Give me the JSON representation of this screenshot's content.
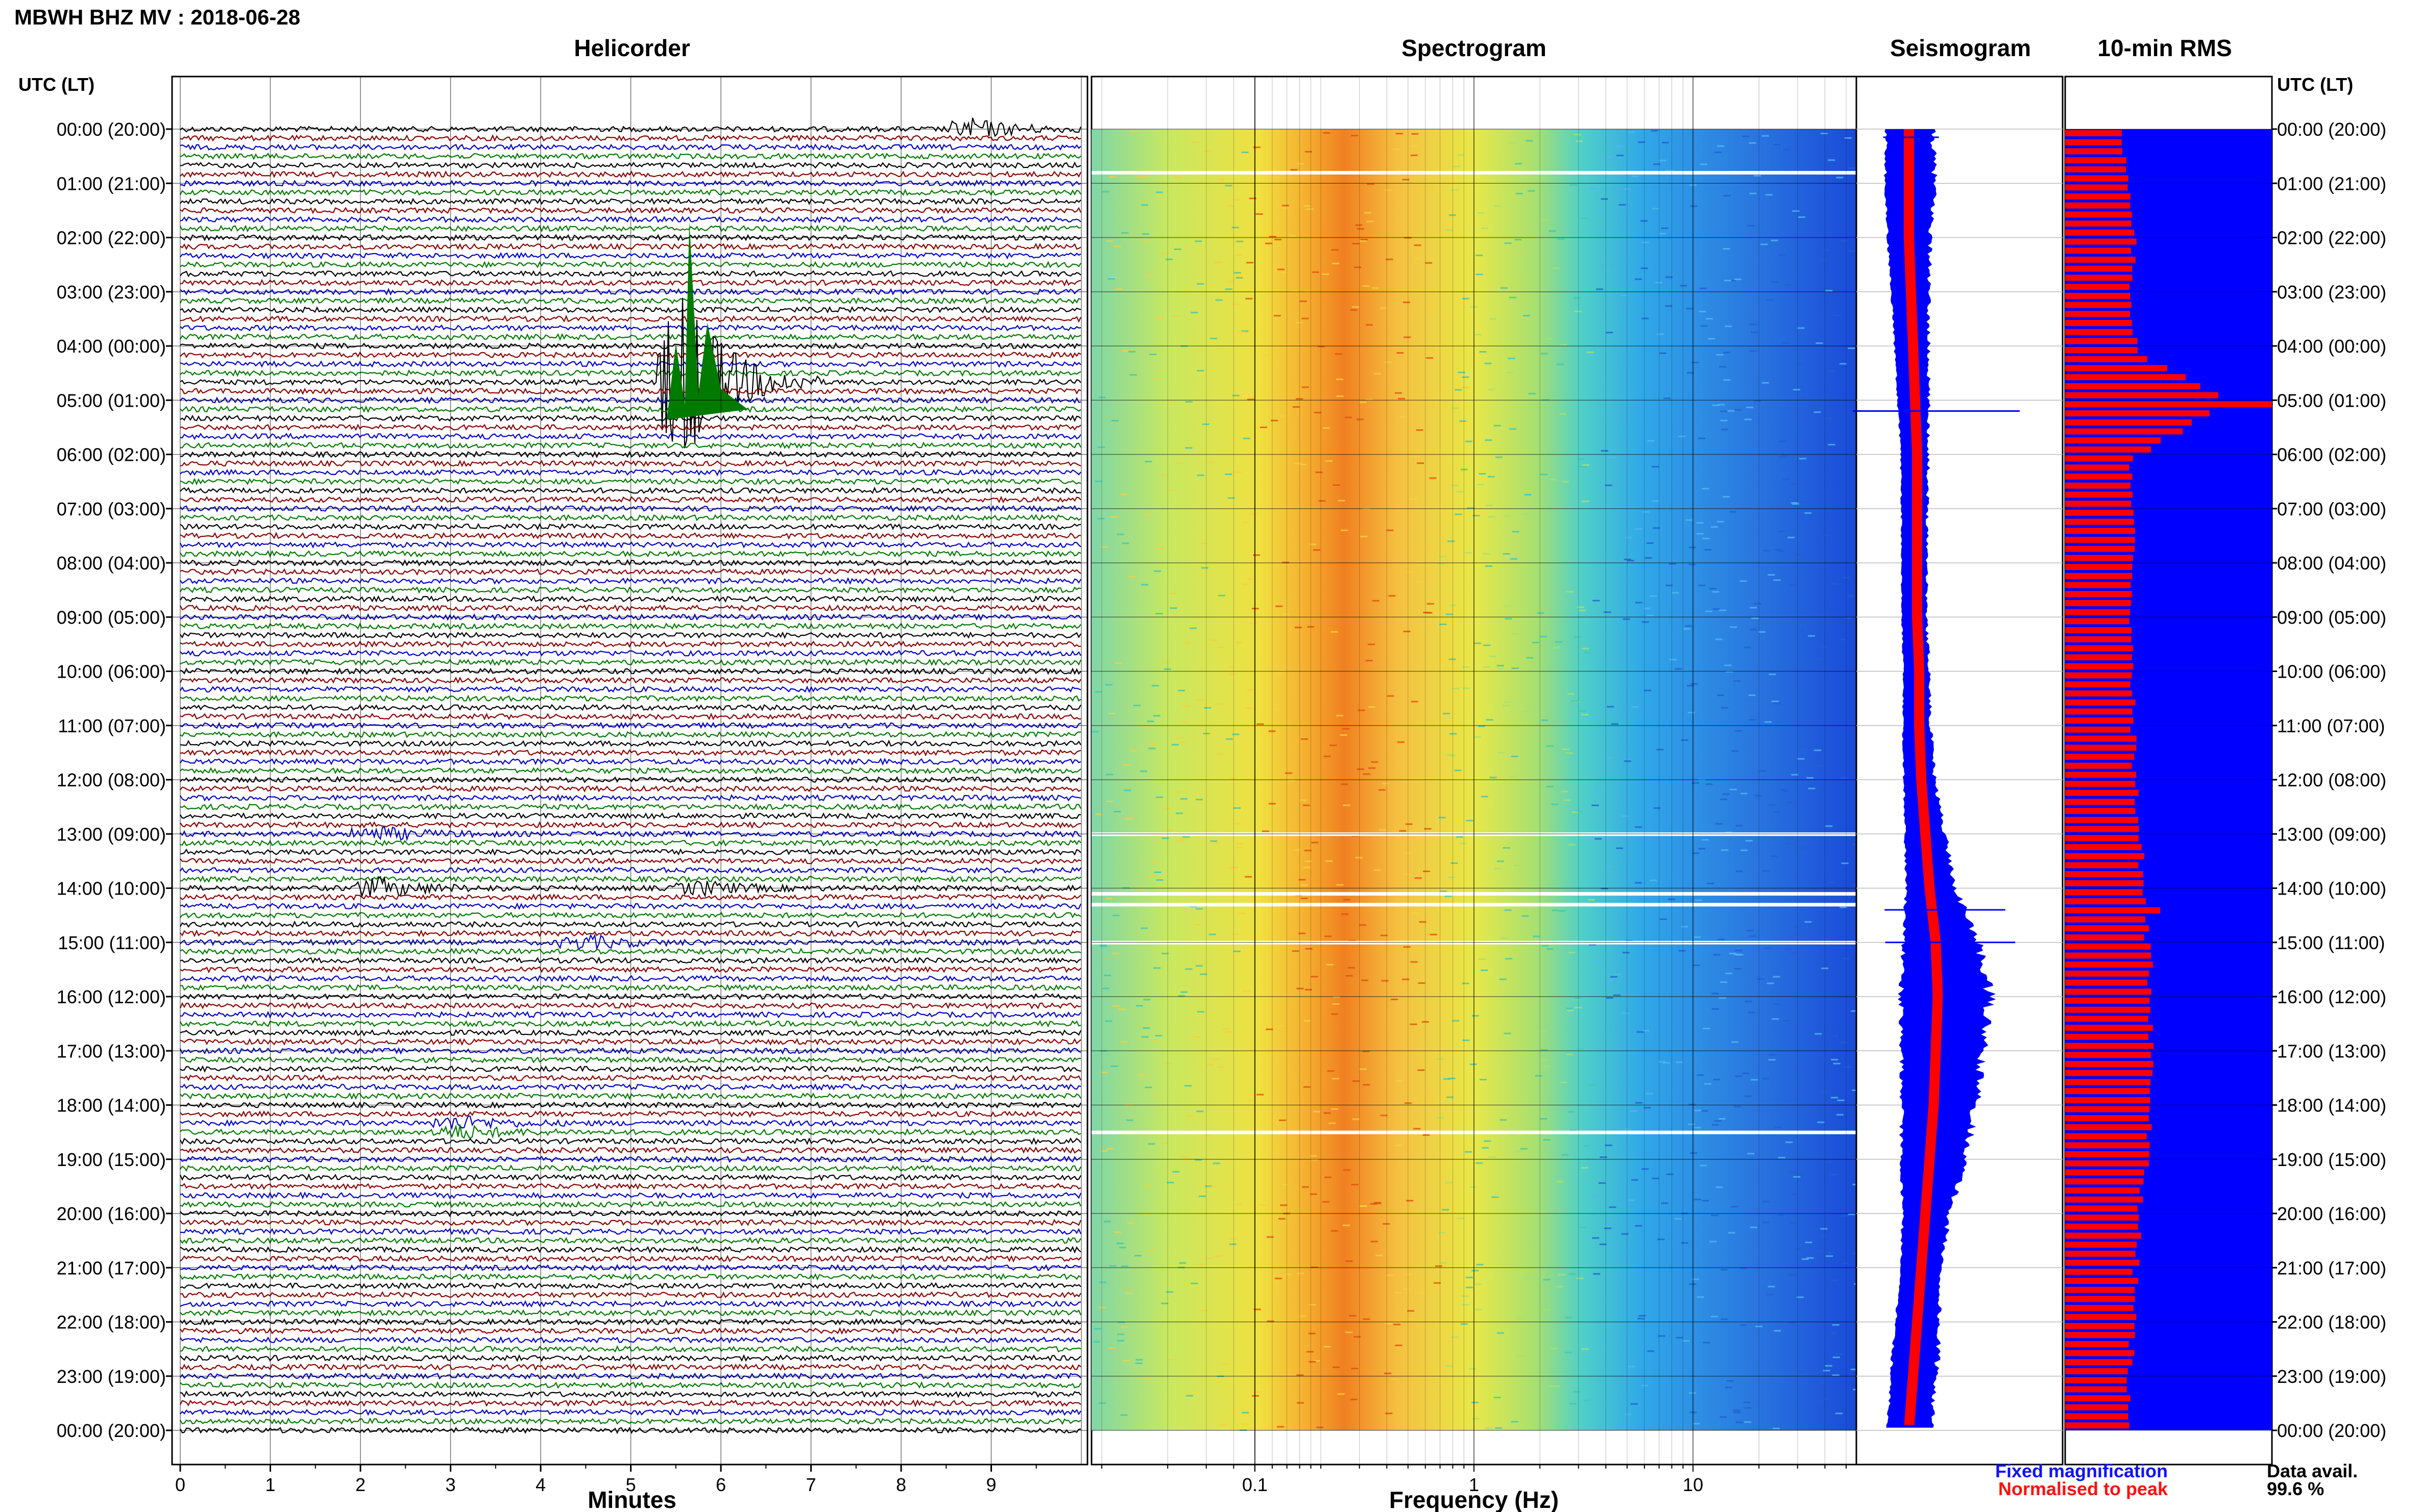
{
  "header": {
    "title": "MBWH BHZ MV : 2018-06-28"
  },
  "panels": {
    "helicorder": "Helicorder",
    "spectrogram": "Spectrogram",
    "seismogram": "Seismogram",
    "rms": "10-min RMS"
  },
  "axes": {
    "utc_label_left": "UTC (LT)",
    "utc_label_right": "UTC (LT)",
    "minutes_label": "Minutes",
    "frequency_label": "Frequency (Hz)"
  },
  "legend": {
    "fixed": "Fixed magnification",
    "normalised": "Normalised to peak"
  },
  "availability": {
    "label": "Data avail.",
    "value": "99.6 %"
  },
  "colors": {
    "trace_colors": [
      "#000000",
      "#8b0000",
      "#0000cc",
      "#007a00"
    ],
    "fixed_color": "#0000ff",
    "normalised_color": "#ff0000",
    "spec_low": "#3a8fd8",
    "spec_mid": "#f0e040",
    "spec_high": "#f08020"
  },
  "chart_data": [
    {
      "type": "line",
      "name_panel": "Helicorder",
      "x_ticks": [
        "0",
        "1",
        "2",
        "3",
        "4",
        "5",
        "6",
        "7",
        "8",
        "9"
      ],
      "xlim": [
        0,
        10
      ],
      "time_labels": [
        "00:00 (20:00)",
        "01:00 (21:00)",
        "02:00 (22:00)",
        "03:00 (23:00)",
        "04:00 (00:00)",
        "05:00 (01:00)",
        "06:00 (02:00)",
        "07:00 (03:00)",
        "08:00 (04:00)",
        "09:00 (05:00)",
        "10:00 (06:00)",
        "11:00 (07:00)",
        "12:00 (08:00)",
        "13:00 (09:00)",
        "14:00 (10:00)",
        "15:00 (11:00)",
        "16:00 (12:00)",
        "17:00 (13:00)",
        "18:00 (14:00)",
        "19:00 (15:00)",
        "20:00 (16:00)",
        "21:00 (17:00)",
        "22:00 (18:00)",
        "23:00 (19:00)",
        "00:00 (20:00)"
      ],
      "lines_per_hour": 6,
      "events": [
        {
          "hour": 0.0,
          "minute": 8.8,
          "amp": 3
        },
        {
          "hour": 4.7,
          "minute": 5.6,
          "amp": 30
        },
        {
          "hour": 13.0,
          "minute": 2.2,
          "amp": 2
        },
        {
          "hour": 14.0,
          "minute": 2.2,
          "amp": 3
        },
        {
          "hour": 14.0,
          "minute": 5.8,
          "amp": 2
        },
        {
          "hour": 15.0,
          "minute": 4.5,
          "amp": 2
        },
        {
          "hour": 18.4,
          "minute": 3.1,
          "amp": 2
        }
      ]
    },
    {
      "type": "heatmap",
      "name_panel": "Spectrogram",
      "x_scale": "log",
      "xlim": [
        0.02,
        50
      ],
      "x_ticks": [
        "0.1",
        "1",
        "10"
      ],
      "peak_frequency_hz": 0.25,
      "data_gaps_hour": [
        0.8,
        13.0,
        14.1,
        14.3,
        15.0,
        18.5
      ]
    },
    {
      "type": "area",
      "name_panel": "Seismogram",
      "hours": [
        0,
        1,
        2,
        3,
        4,
        5,
        6,
        7,
        8,
        9,
        10,
        11,
        12,
        13,
        14,
        15,
        16,
        17,
        18,
        19,
        20,
        21,
        22,
        23,
        24
      ],
      "fixed_halfwidth": [
        0.3,
        0.32,
        0.28,
        0.24,
        0.22,
        0.2,
        0.18,
        0.17,
        0.17,
        0.16,
        0.17,
        0.18,
        0.2,
        0.26,
        0.32,
        0.48,
        0.58,
        0.52,
        0.48,
        0.42,
        0.3,
        0.26,
        0.28,
        0.3,
        0.28
      ],
      "normalised_offset": [
        0.0,
        0.0,
        0.0,
        0.01,
        0.02,
        0.03,
        0.04,
        0.04,
        0.04,
        0.04,
        0.05,
        0.05,
        0.06,
        0.08,
        0.1,
        0.13,
        0.14,
        0.13,
        0.12,
        0.1,
        0.08,
        0.06,
        0.04,
        0.02,
        0.0
      ]
    },
    {
      "type": "bar",
      "name_panel": "10-min RMS",
      "hours": [
        0,
        1,
        2,
        3,
        4,
        5,
        6,
        7,
        8,
        9,
        10,
        11,
        12,
        13,
        14,
        15,
        16,
        17,
        18,
        19,
        20,
        21,
        22,
        23,
        24
      ],
      "rms": [
        0.28,
        0.3,
        0.33,
        0.32,
        0.34,
        0.8,
        0.32,
        0.33,
        0.33,
        0.32,
        0.32,
        0.33,
        0.34,
        0.36,
        0.38,
        0.4,
        0.42,
        0.42,
        0.41,
        0.39,
        0.36,
        0.34,
        0.33,
        0.31,
        0.3
      ]
    }
  ]
}
